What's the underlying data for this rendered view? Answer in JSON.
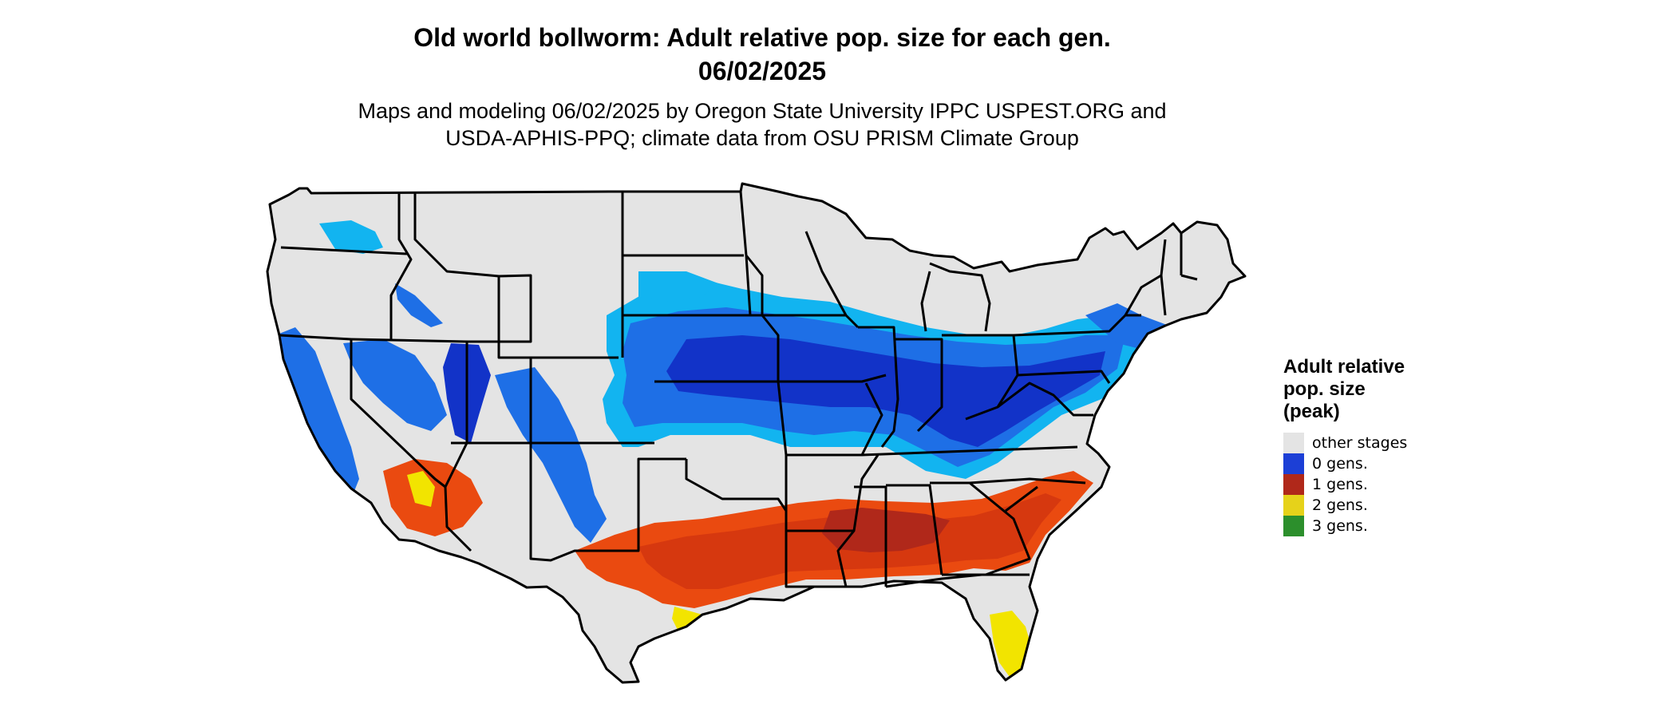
{
  "header": {
    "title_line1": "Old world bollworm: Adult relative pop. size for each gen.",
    "title_line2": "06/02/2025",
    "subtitle_line1": "Maps and modeling 06/02/2025 by Oregon State University IPPC USPEST.ORG and",
    "subtitle_line2": "USDA-APHIS-PPQ; climate data from OSU PRISM Climate Group"
  },
  "legend": {
    "title_line1": "Adult relative",
    "title_line2": "pop. size",
    "title_line3": "(peak)",
    "items": [
      {
        "label": "other stages",
        "color": "#e4e4e4"
      },
      {
        "label": "0 gens.",
        "color": "#1c3fd6"
      },
      {
        "label": "1 gens.",
        "color": "#b0281a"
      },
      {
        "label": "2 gens.",
        "color": "#e6d21a"
      },
      {
        "label": "3 gens.",
        "color": "#2c8f2c"
      }
    ]
  },
  "map": {
    "land_color": "#e4e4e4",
    "border_color": "#000000",
    "blue_dark": "#1233c8",
    "blue_mid": "#1e6fe6",
    "blue_light": "#12b4f0",
    "red_dark": "#b0281a",
    "red_mid": "#d6380f",
    "red_orange": "#ea4a10",
    "yellow": "#f2e400",
    "green": "#2c9a2c"
  }
}
